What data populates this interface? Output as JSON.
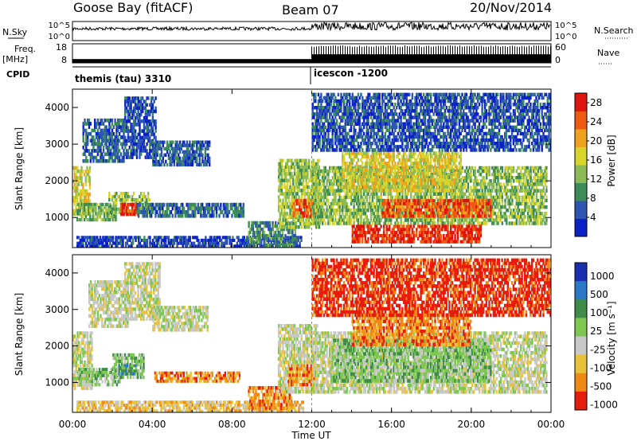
{
  "header": {
    "radar": "Goose Bay (fitACF)",
    "beam": "Beam 07",
    "date": "20/Nov/2014"
  },
  "status_panels": {
    "nsky_label": "N.Sky",
    "nsky_ticks": [
      "10^5",
      "10^0"
    ],
    "nsearch_label": "N.Search",
    "nsearch_ticks": [
      "10^5",
      "10^0"
    ],
    "freq_label": "Freq.",
    "freq_unit": "[MHz]",
    "freq_ticks": [
      "18",
      "8"
    ],
    "nave_label": "Nave",
    "nave_ticks": [
      "60",
      "0"
    ],
    "cpid_label": "CPID",
    "cpid_programs": [
      {
        "name": "themis (tau) 3310",
        "start_hour": 0
      },
      {
        "name": "icescon -1200",
        "start_hour": 12
      }
    ],
    "freq_segments": [
      {
        "start_hour": 0,
        "end_hour": 12,
        "mhz": 10.0
      },
      {
        "start_hour": 12,
        "end_hour": 24,
        "mhz": 12.5
      }
    ],
    "nave_segments": [
      {
        "start_hour": 0,
        "end_hour": 12,
        "value": 4
      },
      {
        "start_hour": 12,
        "end_hour": 24,
        "value": 50
      }
    ]
  },
  "chart_data": [
    {
      "type": "heatmap",
      "name": "power",
      "xlabel": "Time UT",
      "ylabel": "Slant Range [km]",
      "xlim": [
        0,
        24
      ],
      "ylim": [
        180,
        4500
      ],
      "xtick_labels": [
        "00:00",
        "04:00",
        "08:00",
        "12:00",
        "16:00",
        "20:00",
        "00:00"
      ],
      "xtick_hours": [
        0,
        4,
        8,
        12,
        16,
        20,
        24
      ],
      "ytick_labels": [
        "1000",
        "2000",
        "3000",
        "4000"
      ],
      "ytick_values": [
        1000,
        2000,
        3000,
        4000
      ],
      "colorbar": {
        "label": "Power [dB]",
        "ticks": [
          "4",
          "8",
          "12",
          "16",
          "20",
          "24",
          "28"
        ],
        "tick_values": [
          4,
          8,
          12,
          16,
          20,
          24,
          28
        ],
        "range": [
          0,
          30
        ],
        "colors": [
          "#0b22c8",
          "#2e55b4",
          "#3c8c58",
          "#8bbb55",
          "#d8d42c",
          "#f0a21e",
          "#ee5a10",
          "#e0150c"
        ]
      },
      "regions": [
        {
          "t0": 0.0,
          "t1": 0.9,
          "r0": 1050,
          "r1": 2400,
          "level": 16
        },
        {
          "t0": 0.2,
          "t1": 2.2,
          "r0": 900,
          "r1": 1400,
          "level": 12
        },
        {
          "t0": 0.5,
          "t1": 2.6,
          "r0": 2500,
          "r1": 3700,
          "level": 6
        },
        {
          "t0": 1.8,
          "t1": 3.9,
          "r0": 1100,
          "r1": 1700,
          "level": 14
        },
        {
          "t0": 2.4,
          "t1": 3.3,
          "r0": 1050,
          "r1": 1400,
          "level": 26
        },
        {
          "t0": 2.6,
          "t1": 4.2,
          "r0": 2600,
          "r1": 4300,
          "level": 5
        },
        {
          "t0": 4.0,
          "t1": 6.9,
          "r0": 2400,
          "r1": 3100,
          "level": 6
        },
        {
          "t0": 3.2,
          "t1": 8.6,
          "r0": 1000,
          "r1": 1400,
          "level": 7
        },
        {
          "t0": 0.2,
          "t1": 11.5,
          "r0": 180,
          "r1": 500,
          "level": 4
        },
        {
          "t0": 8.8,
          "t1": 11.2,
          "r0": 200,
          "r1": 900,
          "level": 9
        },
        {
          "t0": 10.3,
          "t1": 12.4,
          "r0": 700,
          "r1": 2600,
          "level": 14
        },
        {
          "t0": 11.0,
          "t1": 12.2,
          "r0": 1000,
          "r1": 1500,
          "level": 24
        },
        {
          "t0": 12.0,
          "t1": 23.8,
          "r0": 800,
          "r1": 2400,
          "level": 13
        },
        {
          "t0": 13.5,
          "t1": 19.5,
          "r0": 1700,
          "r1": 2800,
          "level": 17
        },
        {
          "t0": 15.5,
          "t1": 21.0,
          "r0": 1000,
          "r1": 1500,
          "level": 25
        },
        {
          "t0": 14.0,
          "t1": 20.5,
          "r0": 300,
          "r1": 800,
          "level": 27
        },
        {
          "t0": 12.0,
          "t1": 24.0,
          "r0": 2800,
          "r1": 4400,
          "level": 5
        }
      ]
    },
    {
      "type": "heatmap",
      "name": "velocity",
      "xlabel": "Time UT",
      "ylabel": "Slant Range [km]",
      "xlim": [
        0,
        24
      ],
      "ylim": [
        180,
        4500
      ],
      "xtick_labels": [
        "00:00",
        "04:00",
        "08:00",
        "12:00",
        "16:00",
        "20:00",
        "00:00"
      ],
      "xtick_hours": [
        0,
        4,
        8,
        12,
        16,
        20,
        24
      ],
      "ytick_labels": [
        "1000",
        "2000",
        "3000",
        "4000"
      ],
      "ytick_values": [
        1000,
        2000,
        3000,
        4000
      ],
      "colorbar": {
        "label": "Velocity [m s⁻¹]",
        "ticks": [
          "1000",
          "500",
          "100",
          "25",
          "-25",
          "-100",
          "-500",
          "-1000"
        ],
        "colors": [
          "#1a2fb0",
          "#2a78c8",
          "#3f8c4a",
          "#7cc850",
          "#c8c8c8",
          "#e8c23a",
          "#f08a14",
          "#e81c0c"
        ]
      },
      "regions": [
        {
          "t0": 0.0,
          "t1": 1.0,
          "r0": 800,
          "r1": 2400,
          "cls": 4
        },
        {
          "t0": 0.3,
          "t1": 2.4,
          "r0": 900,
          "r1": 1400,
          "cls": 3
        },
        {
          "t0": 0.8,
          "t1": 2.8,
          "r0": 2500,
          "r1": 3800,
          "cls": 4
        },
        {
          "t0": 2.0,
          "t1": 3.6,
          "r0": 1100,
          "r1": 1800,
          "cls": 3
        },
        {
          "t0": 2.3,
          "t1": 3.2,
          "r0": 1200,
          "r1": 1500,
          "cls": 2
        },
        {
          "t0": 2.6,
          "t1": 4.4,
          "r0": 2700,
          "r1": 4300,
          "cls": 4
        },
        {
          "t0": 4.0,
          "t1": 6.8,
          "r0": 2400,
          "r1": 3100,
          "cls": 4
        },
        {
          "t0": 4.1,
          "t1": 8.4,
          "r0": 1000,
          "r1": 1300,
          "cls": 6
        },
        {
          "t0": 0.2,
          "t1": 11.6,
          "r0": 180,
          "r1": 500,
          "cls": 5
        },
        {
          "t0": 8.8,
          "t1": 11.0,
          "r0": 250,
          "r1": 900,
          "cls": 6
        },
        {
          "t0": 10.3,
          "t1": 12.3,
          "r0": 700,
          "r1": 2600,
          "cls": 4
        },
        {
          "t0": 10.8,
          "t1": 12.3,
          "r0": 900,
          "r1": 1500,
          "cls": 6
        },
        {
          "t0": 12.0,
          "t1": 23.8,
          "r0": 700,
          "r1": 2400,
          "cls": 4
        },
        {
          "t0": 13.0,
          "t1": 21.0,
          "r0": 1000,
          "r1": 2200,
          "cls": 3
        },
        {
          "t0": 14.0,
          "t1": 20.0,
          "r0": 2000,
          "r1": 2900,
          "cls": 6
        },
        {
          "t0": 12.0,
          "t1": 24.0,
          "r0": 2800,
          "r1": 4400,
          "cls": 7
        }
      ]
    }
  ]
}
